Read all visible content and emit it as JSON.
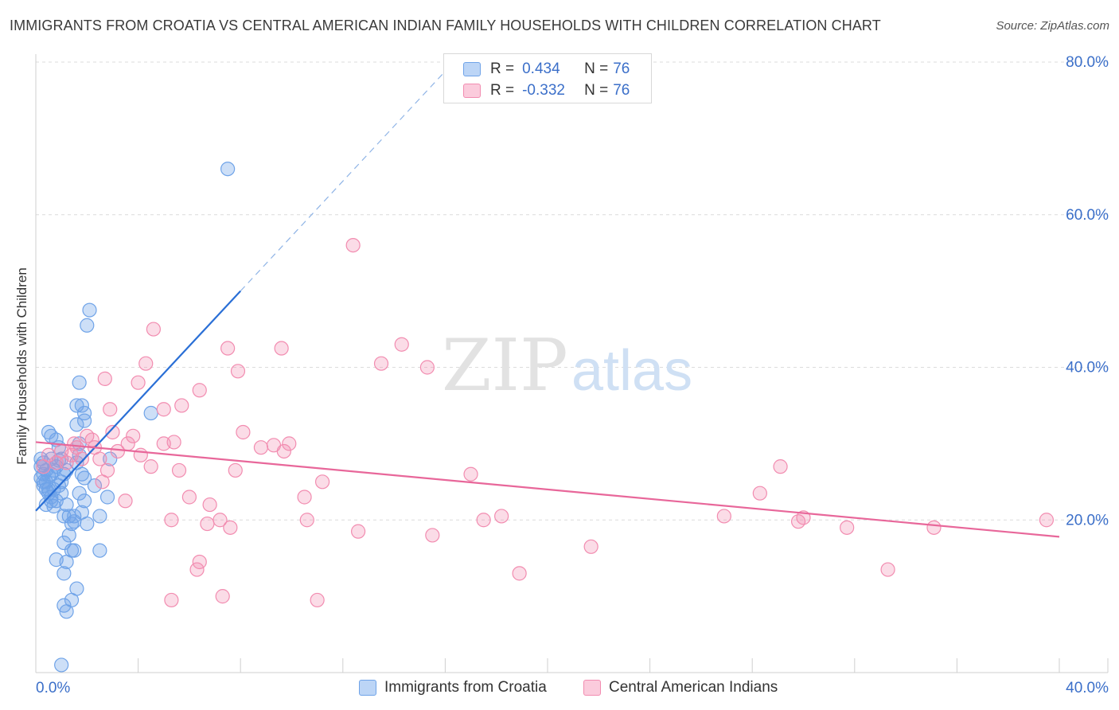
{
  "header": {
    "title": "IMMIGRANTS FROM CROATIA VS CENTRAL AMERICAN INDIAN FAMILY HOUSEHOLDS WITH CHILDREN CORRELATION CHART",
    "source": "Source: ZipAtlas.com"
  },
  "watermark": {
    "zip": "ZIP",
    "atlas": "atlas"
  },
  "stats": {
    "rows": [
      {
        "r_label": "R =",
        "r_value": "0.434",
        "n_label": "N =",
        "n_value": "76",
        "color": "#6fa3e8"
      },
      {
        "r_label": "R =",
        "r_value": "-0.332",
        "n_label": "N =",
        "n_value": "76",
        "color": "#f28cb0"
      }
    ]
  },
  "legend": {
    "items": [
      {
        "label": "Immigrants from Croatia",
        "color": "#6fa3e8"
      },
      {
        "label": "Central American Indians",
        "color": "#f28cb0"
      }
    ]
  },
  "chart_data": {
    "type": "scatter",
    "title": "IMMIGRANTS FROM CROATIA VS CENTRAL AMERICAN INDIAN FAMILY HOUSEHOLDS WITH CHILDREN CORRELATION CHART",
    "xlabel": "",
    "ylabel": "Family Households with Children",
    "xlim": [
      0,
      40
    ],
    "ylim": [
      0,
      80
    ],
    "x_tick_labels": [
      "0.0%",
      "40.0%"
    ],
    "y_ticks": [
      20,
      40,
      60,
      80
    ],
    "y_tick_labels": [
      "20.0%",
      "40.0%",
      "60.0%",
      "80.0%"
    ],
    "grid": true,
    "legend_position": "bottom",
    "series": [
      {
        "name": "Immigrants from Croatia",
        "color": "#6fa3e8",
        "line_color": "#2a6fd6",
        "trend": {
          "x0": 0.0,
          "y0": 21.2,
          "x1": 8.0,
          "y1": 50.0,
          "dashed_to_x": 16.0,
          "dashed_to_y": 78.8
        },
        "points": [
          [
            0.2,
            27.0
          ],
          [
            0.3,
            26.0
          ],
          [
            0.4,
            25.0
          ],
          [
            0.5,
            24.0
          ],
          [
            0.2,
            25.5
          ],
          [
            0.6,
            28.0
          ],
          [
            0.3,
            27.5
          ],
          [
            0.7,
            26.5
          ],
          [
            0.8,
            27.0
          ],
          [
            0.5,
            25.8
          ],
          [
            0.4,
            22.0
          ],
          [
            0.6,
            23.0
          ],
          [
            0.9,
            24.5
          ],
          [
            1.0,
            23.5
          ],
          [
            0.8,
            22.5
          ],
          [
            1.1,
            26.0
          ],
          [
            0.7,
            24.0
          ],
          [
            0.5,
            31.5
          ],
          [
            0.6,
            31.0
          ],
          [
            0.8,
            30.5
          ],
          [
            0.9,
            29.5
          ],
          [
            1.0,
            28.0
          ],
          [
            1.2,
            22.0
          ],
          [
            1.3,
            20.5
          ],
          [
            1.1,
            20.5
          ],
          [
            1.4,
            19.5
          ],
          [
            1.3,
            18.0
          ],
          [
            1.1,
            17.0
          ],
          [
            1.4,
            16.0
          ],
          [
            1.5,
            16.0
          ],
          [
            1.2,
            14.5
          ],
          [
            0.8,
            14.8
          ],
          [
            1.1,
            13.0
          ],
          [
            1.6,
            11.0
          ],
          [
            1.4,
            9.5
          ],
          [
            1.1,
            8.8
          ],
          [
            1.2,
            8.0
          ],
          [
            1.0,
            1.0
          ],
          [
            1.5,
            20.5
          ],
          [
            1.5,
            19.8
          ],
          [
            1.6,
            35.0
          ],
          [
            1.7,
            38.0
          ],
          [
            1.6,
            32.5
          ],
          [
            1.9,
            33.0
          ],
          [
            1.8,
            35.0
          ],
          [
            1.9,
            34.0
          ],
          [
            1.7,
            30.0
          ],
          [
            1.8,
            26.0
          ],
          [
            1.9,
            25.5
          ],
          [
            1.7,
            23.5
          ],
          [
            1.9,
            22.5
          ],
          [
            1.8,
            21.0
          ],
          [
            2.0,
            19.5
          ],
          [
            1.7,
            28.5
          ],
          [
            1.6,
            27.5
          ],
          [
            2.3,
            24.5
          ],
          [
            2.5,
            20.5
          ],
          [
            2.5,
            16.0
          ],
          [
            2.8,
            23.0
          ],
          [
            2.0,
            45.5
          ],
          [
            2.1,
            47.5
          ],
          [
            4.5,
            34.0
          ],
          [
            2.9,
            28.0
          ],
          [
            7.5,
            66.0
          ],
          [
            0.3,
            24.5
          ],
          [
            0.4,
            26.5
          ],
          [
            0.6,
            22.5
          ],
          [
            0.9,
            27.8
          ],
          [
            0.2,
            28.0
          ],
          [
            0.3,
            25.0
          ],
          [
            0.5,
            23.5
          ],
          [
            0.4,
            24.0
          ],
          [
            1.0,
            25.0
          ],
          [
            0.7,
            21.8
          ],
          [
            0.6,
            26.0
          ],
          [
            1.2,
            26.5
          ]
        ]
      },
      {
        "name": "Central American Indians",
        "color": "#f28cb0",
        "line_color": "#e8679a",
        "trend": {
          "x0": 0.0,
          "y0": 30.2,
          "x1": 40.0,
          "y1": 17.8
        },
        "points": [
          [
            0.3,
            27.0
          ],
          [
            0.5,
            28.5
          ],
          [
            0.8,
            27.5
          ],
          [
            1.0,
            29.0
          ],
          [
            1.2,
            27.5
          ],
          [
            1.4,
            28.5
          ],
          [
            1.6,
            29.5
          ],
          [
            1.5,
            30.0
          ],
          [
            1.8,
            28.0
          ],
          [
            2.0,
            31.0
          ],
          [
            2.2,
            30.5
          ],
          [
            2.3,
            29.5
          ],
          [
            2.5,
            28.0
          ],
          [
            2.6,
            25.0
          ],
          [
            2.8,
            26.5
          ],
          [
            2.7,
            38.5
          ],
          [
            2.9,
            34.5
          ],
          [
            3.0,
            31.5
          ],
          [
            3.2,
            29.0
          ],
          [
            3.5,
            22.5
          ],
          [
            3.6,
            30.0
          ],
          [
            3.8,
            31.0
          ],
          [
            4.0,
            38.0
          ],
          [
            4.1,
            28.5
          ],
          [
            4.3,
            40.5
          ],
          [
            4.5,
            27.0
          ],
          [
            4.6,
            45.0
          ],
          [
            5.0,
            34.5
          ],
          [
            5.0,
            30.0
          ],
          [
            5.3,
            9.5
          ],
          [
            5.3,
            20.0
          ],
          [
            5.6,
            26.5
          ],
          [
            5.7,
            35.0
          ],
          [
            6.0,
            23.0
          ],
          [
            6.3,
            13.5
          ],
          [
            6.4,
            14.5
          ],
          [
            6.4,
            37.0
          ],
          [
            6.7,
            19.5
          ],
          [
            6.8,
            22.0
          ],
          [
            7.2,
            20.0
          ],
          [
            7.3,
            10.0
          ],
          [
            7.5,
            42.5
          ],
          [
            7.6,
            19.0
          ],
          [
            7.8,
            26.5
          ],
          [
            7.9,
            39.5
          ],
          [
            8.1,
            31.5
          ],
          [
            8.8,
            29.5
          ],
          [
            9.3,
            29.8
          ],
          [
            9.6,
            42.5
          ],
          [
            9.9,
            30.0
          ],
          [
            9.7,
            29.0
          ],
          [
            10.5,
            23.0
          ],
          [
            10.6,
            20.0
          ],
          [
            11.0,
            9.5
          ],
          [
            11.2,
            25.0
          ],
          [
            12.4,
            56.0
          ],
          [
            12.6,
            18.5
          ],
          [
            13.5,
            40.5
          ],
          [
            14.3,
            43.0
          ],
          [
            15.3,
            40.0
          ],
          [
            15.5,
            18.0
          ],
          [
            17.0,
            26.0
          ],
          [
            17.5,
            20.0
          ],
          [
            18.2,
            20.5
          ],
          [
            18.9,
            13.0
          ],
          [
            21.7,
            16.5
          ],
          [
            26.9,
            20.5
          ],
          [
            28.3,
            23.5
          ],
          [
            29.1,
            27.0
          ],
          [
            29.8,
            19.8
          ],
          [
            30.0,
            20.3
          ],
          [
            31.7,
            19.0
          ],
          [
            33.3,
            13.5
          ],
          [
            35.1,
            19.0
          ],
          [
            39.5,
            20.0
          ],
          [
            5.4,
            30.2
          ]
        ]
      }
    ]
  }
}
